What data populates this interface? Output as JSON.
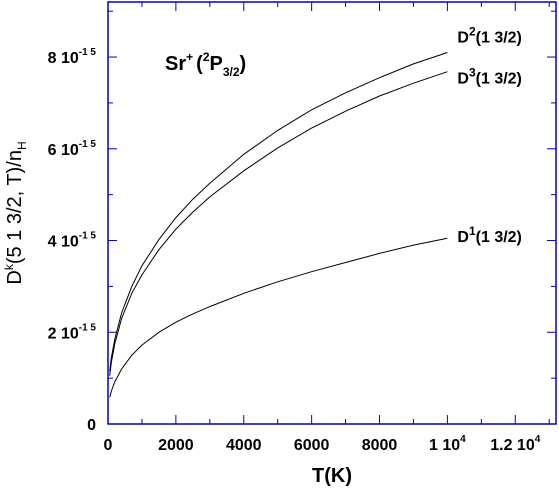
{
  "chart_data": {
    "type": "line",
    "title": {
      "species": "Sr",
      "charge": "+",
      "term_open": "(",
      "term_multiplicity": "2",
      "term_letter": "P",
      "term_j": "3/2",
      "term_close": ")"
    },
    "xlabel": "T(K)",
    "ylabel": {
      "base": "D",
      "sup": "k",
      "args": "(5 1  3/2, T)/n",
      "sub": "H"
    },
    "xlim": [
      0,
      13200
    ],
    "ylim": [
      0,
      9.2e-15
    ],
    "x_ticks": [
      {
        "value": 0,
        "text": "0",
        "exp": ""
      },
      {
        "value": 2000,
        "text": "2000",
        "exp": ""
      },
      {
        "value": 4000,
        "text": "4000",
        "exp": ""
      },
      {
        "value": 6000,
        "text": "6000",
        "exp": ""
      },
      {
        "value": 8000,
        "text": "8000",
        "exp": ""
      },
      {
        "value": 10000,
        "text": "1 10",
        "exp": "4"
      },
      {
        "value": 12000,
        "text": "1.2 10",
        "exp": "4"
      }
    ],
    "y_ticks": [
      {
        "value": 0,
        "text": "0",
        "exp": ""
      },
      {
        "value": 2e-15,
        "text": "2 10",
        "exp": "-1 5"
      },
      {
        "value": 4e-15,
        "text": "4 10",
        "exp": "-1 5"
      },
      {
        "value": 6e-15,
        "text": "6 10",
        "exp": "-1 5"
      },
      {
        "value": 8e-15,
        "text": "8 10",
        "exp": "-1 5"
      }
    ],
    "grid": false,
    "series": [
      {
        "name": "D2(1 3/2)",
        "label": {
          "base": "D",
          "sup": "2",
          "rest": "(1 3/2)"
        },
        "x": [
          50,
          100,
          200,
          400,
          700,
          1000,
          1500,
          2000,
          2500,
          3000,
          4000,
          5000,
          6000,
          7000,
          8000,
          9000,
          10000
        ],
        "y": [
          1.15e-15,
          1.45e-15,
          1.85e-15,
          2.42e-15,
          3e-15,
          3.45e-15,
          4.02e-15,
          4.5e-15,
          4.9e-15,
          5.25e-15,
          5.88e-15,
          6.4e-15,
          6.85e-15,
          7.22e-15,
          7.55e-15,
          7.85e-15,
          8.1e-15
        ]
      },
      {
        "name": "D3(1 3/2)",
        "label": {
          "base": "D",
          "sup": "3",
          "rest": "(1 3/2)"
        },
        "x": [
          50,
          100,
          200,
          400,
          700,
          1000,
          1500,
          2000,
          2500,
          3000,
          4000,
          5000,
          6000,
          7000,
          8000,
          9000,
          10000
        ],
        "y": [
          1.05e-15,
          1.35e-15,
          1.75e-15,
          2.3e-15,
          2.85e-15,
          3.25e-15,
          3.8e-15,
          4.25e-15,
          4.62e-15,
          4.95e-15,
          5.52e-15,
          6.02e-15,
          6.45e-15,
          6.82e-15,
          7.15e-15,
          7.43e-15,
          7.68e-15
        ]
      },
      {
        "name": "D1(1 3/2)",
        "label": {
          "base": "D",
          "sup": "1",
          "rest": "(1 3/2)"
        },
        "x": [
          50,
          100,
          200,
          400,
          700,
          1000,
          1500,
          2000,
          2500,
          3000,
          4000,
          5000,
          6000,
          7000,
          8000,
          9000,
          10000
        ],
        "y": [
          5.8e-16,
          7.2e-16,
          9.2e-16,
          1.2e-15,
          1.5e-15,
          1.72e-15,
          2e-15,
          2.22e-15,
          2.4e-15,
          2.56e-15,
          2.85e-15,
          3.1e-15,
          3.32e-15,
          3.52e-15,
          3.72e-15,
          3.9e-15,
          4.05e-15
        ]
      }
    ]
  }
}
